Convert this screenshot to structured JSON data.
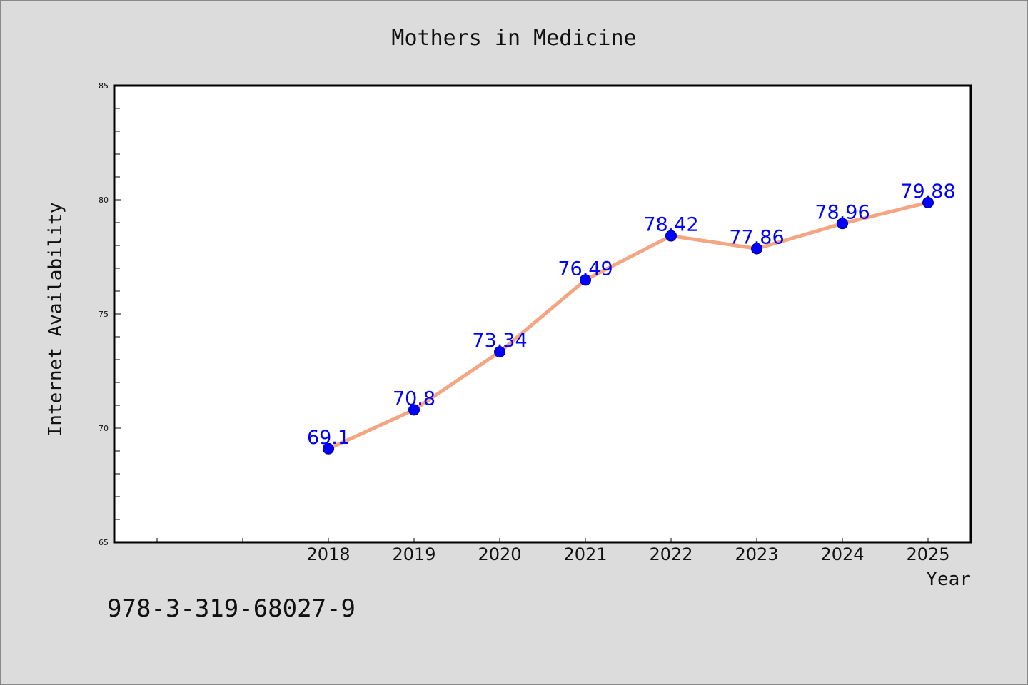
{
  "chart_data": {
    "type": "line",
    "title": "Mothers in Medicine",
    "xlabel": "Year",
    "ylabel": "Internet Availability",
    "categories": [
      "2018",
      "2019",
      "2020",
      "2021",
      "2022",
      "2023",
      "2024",
      "2025"
    ],
    "series": [
      {
        "values": [
          69.1,
          70.8,
          73.34,
          76.49,
          78.42,
          77.86,
          78.96,
          79.88
        ],
        "data_labels": [
          "69.1",
          "70.8",
          "73.34",
          "76.49",
          "78.42",
          "77.86",
          "78.96",
          "79.88"
        ]
      }
    ],
    "yticks": [
      "65",
      "70",
      "75",
      "80",
      "85"
    ],
    "ylim": [
      65,
      85
    ],
    "grid": false,
    "legend": "none",
    "colors": {
      "line": "#f4a582",
      "marker": "#0000ff",
      "data_label": "#0000ff",
      "background": "#dcdcdc",
      "plot_background": "#ffffff"
    }
  },
  "footer": {
    "code": "978-3-319-68027-9"
  }
}
